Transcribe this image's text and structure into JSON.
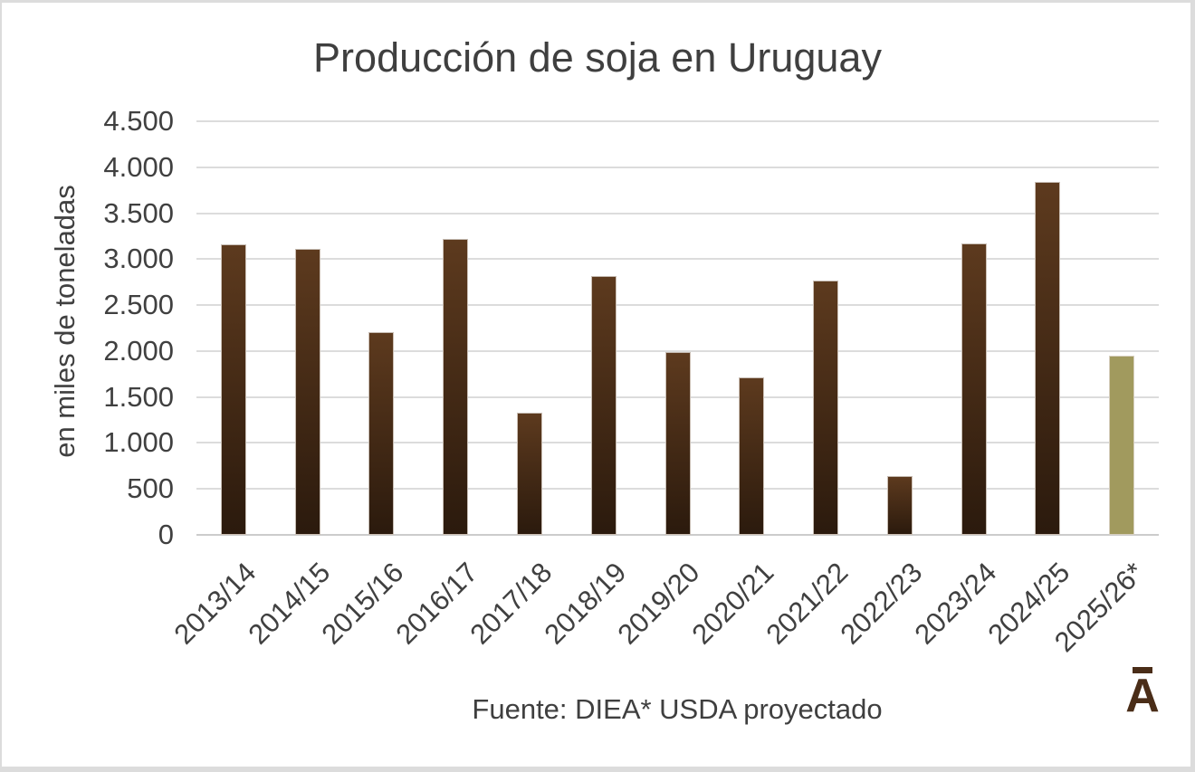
{
  "panel": {
    "background": "#ffffff",
    "frame_color": "#dcdcdc"
  },
  "chart_data": {
    "type": "bar",
    "title": "Producción de soja en Uruguay",
    "ylabel": "en miles de toneladas",
    "xlabel": "",
    "categories": [
      "2013/14",
      "2014/15",
      "2015/16",
      "2016/17",
      "2017/18",
      "2018/19",
      "2019/20",
      "2020/21",
      "2021/22",
      "2022/23",
      "2023/24",
      "2024/25",
      "2025/26*"
    ],
    "values": [
      3160,
      3110,
      2205,
      3215,
      1330,
      2820,
      1990,
      1710,
      2770,
      640,
      3175,
      3840,
      1950
    ],
    "unit": "miles de toneladas",
    "ylim": [
      0,
      4500
    ],
    "ytick_step": 500,
    "ytick_labels": [
      "0",
      "500",
      "1.000",
      "1.500",
      "2.000",
      "2.500",
      "3.000",
      "3.500",
      "4.000",
      "4.500"
    ],
    "grid": true,
    "legend": "none",
    "bar_gradient_top": "#5d3a1e",
    "bar_gradient_bottom": "#2b1a0d",
    "highlight_index": 12,
    "highlight_color": "#a19a5e",
    "text_color": "#404040",
    "gridline_color": "#dcdcdc"
  },
  "footer": {
    "source_text": "Fuente: DIEA* USDA proyectado"
  },
  "logo": {
    "letter": "A",
    "macron": true,
    "color": "#4a2d18"
  }
}
